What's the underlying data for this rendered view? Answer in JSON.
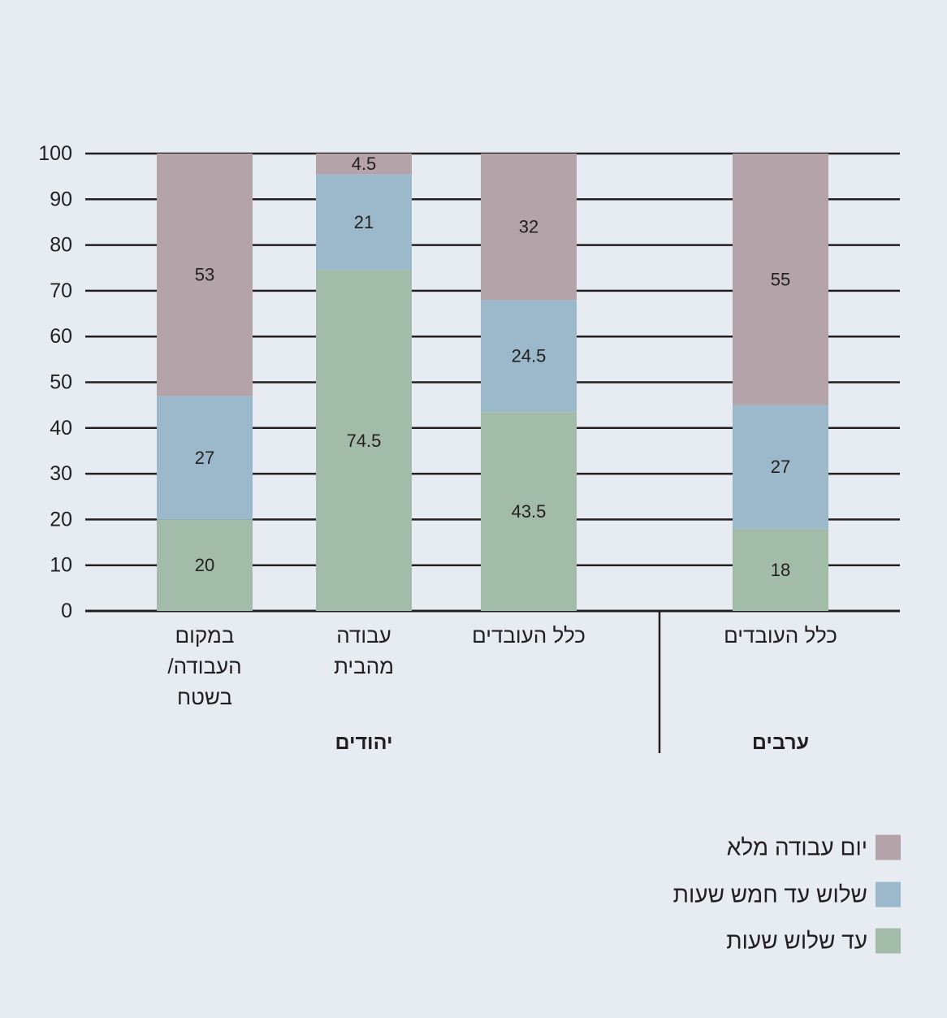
{
  "chart_data": {
    "type": "bar",
    "stacked": true,
    "categories": [
      [
        "במקום",
        "העבודה/",
        "בשטח"
      ],
      [
        "עבודה",
        "מהבית"
      ],
      [
        "כלל העובדים"
      ],
      [
        "כלל העובדים"
      ]
    ],
    "category_groups": [
      "יהודים",
      "יהודים",
      "יהודים",
      "ערבים"
    ],
    "group_labels": [
      "יהודים",
      "ערבים"
    ],
    "series": [
      {
        "name": "עד שלוש שעות",
        "color": "#a3bca9",
        "values": [
          20,
          74.5,
          43.5,
          18
        ],
        "labels": [
          "20",
          "74.5",
          "43.5",
          "18"
        ]
      },
      {
        "name": "שלוש עד חמש שעות",
        "color": "#9bb9ca",
        "values": [
          27,
          21,
          24.5,
          27
        ],
        "labels": [
          "27",
          "21",
          "24.5",
          "27"
        ]
      },
      {
        "name": "יום עבודה מלא",
        "color": "#b4a3a8",
        "values": [
          53,
          4.5,
          32,
          55
        ],
        "labels": [
          "53",
          "4.5",
          "32",
          "55"
        ]
      }
    ],
    "legend_order": [
      2,
      1,
      0
    ],
    "y_ticks": [
      "0",
      "10",
      "20",
      "30",
      "40",
      "50",
      "60",
      "70",
      "80",
      "90",
      "100"
    ],
    "ylim": [
      0,
      100
    ],
    "grid": true,
    "legend_position": "bottom-right"
  }
}
